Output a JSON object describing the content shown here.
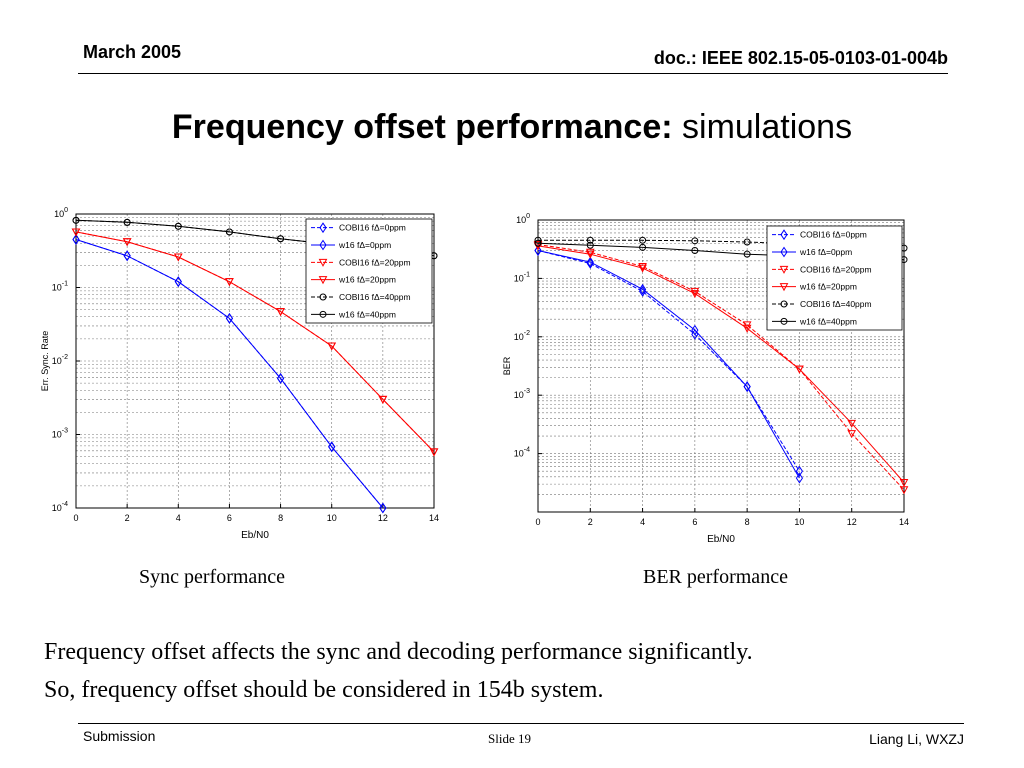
{
  "header": {
    "date": "March 2005",
    "doc": "doc.: IEEE 802.15-05-0103-01-004b"
  },
  "title": {
    "bold": "Frequency offset performance:",
    "normal": " simulations"
  },
  "captions": {
    "left": "Sync performance",
    "right": "BER performance"
  },
  "body": {
    "line1": "Frequency offset affects the sync and decoding performance significantly.",
    "line2": "So, frequency offset should be considered in 154b system."
  },
  "footer": {
    "left": "Submission",
    "center": "Slide 19",
    "right": "Liang Li, WXZJ"
  },
  "chart_data": [
    {
      "type": "line",
      "log_y": true,
      "xlabel": "Eb/N0",
      "ylabel": "Err. Sync. Rate",
      "xlim": [
        0,
        14
      ],
      "ylim": [
        0.0001,
        1
      ],
      "xticks": [
        0,
        2,
        4,
        6,
        8,
        10,
        12,
        14
      ],
      "yticks": [
        1,
        0.1,
        0.01,
        0.001,
        0.0001
      ],
      "ytick_labels": [
        "10^0",
        "10^-1",
        "10^-2",
        "10^-3",
        "10^-4"
      ],
      "grid": true,
      "legend_position": "top-right",
      "series": [
        {
          "name": "COBI16 fΔ=0ppm",
          "color": "#0000ff",
          "dash": true,
          "marker": "diamond",
          "x": [
            0,
            2,
            4,
            6,
            8,
            10,
            12
          ],
          "y": [
            0.45,
            0.27,
            0.12,
            0.038,
            0.0058,
            0.00068,
            0.0001
          ]
        },
        {
          "name": "w16 fΔ=0ppm",
          "color": "#0000ff",
          "dash": false,
          "marker": "diamond",
          "x": [
            0,
            2,
            4,
            6,
            8,
            10,
            12
          ],
          "y": [
            0.45,
            0.27,
            0.12,
            0.038,
            0.0058,
            0.00068,
            0.0001
          ]
        },
        {
          "name": "COBI16 fΔ=20ppm",
          "color": "#ff0000",
          "dash": true,
          "marker": "triangle",
          "x": [
            0,
            2,
            4,
            6,
            8,
            10,
            12,
            14
          ],
          "y": [
            0.57,
            0.42,
            0.26,
            0.12,
            0.047,
            0.016,
            0.003,
            0.00058
          ]
        },
        {
          "name": "w16 fΔ=20ppm",
          "color": "#ff0000",
          "dash": false,
          "marker": "triangle",
          "x": [
            0,
            2,
            4,
            6,
            8,
            10,
            12,
            14
          ],
          "y": [
            0.57,
            0.42,
            0.26,
            0.12,
            0.047,
            0.016,
            0.003,
            0.00058
          ]
        },
        {
          "name": "COBI16 fΔ=40ppm",
          "color": "#000000",
          "dash": true,
          "marker": "circle",
          "x": [
            0,
            2,
            4,
            6,
            8,
            14
          ],
          "y": [
            0.82,
            0.77,
            0.68,
            0.57,
            0.46,
            0.27
          ]
        },
        {
          "name": "w16 fΔ=40ppm",
          "color": "#000000",
          "dash": false,
          "marker": "circle",
          "x": [
            0,
            2,
            4,
            6,
            8,
            14
          ],
          "y": [
            0.82,
            0.77,
            0.68,
            0.57,
            0.46,
            0.27
          ]
        }
      ]
    },
    {
      "type": "line",
      "log_y": true,
      "xlabel": "Eb/N0",
      "ylabel": "BER",
      "xlim": [
        0,
        14
      ],
      "ylim": [
        1e-05,
        1
      ],
      "xticks": [
        0,
        2,
        4,
        6,
        8,
        10,
        12,
        14
      ],
      "yticks": [
        1,
        0.1,
        0.01,
        0.001,
        0.0001
      ],
      "ytick_labels": [
        "10^0",
        "10^-1",
        "10^-2",
        "10^-3",
        "10^-4"
      ],
      "grid": true,
      "legend_position": "top-right",
      "series": [
        {
          "name": "COBI16 fΔ=0ppm",
          "color": "#0000ff",
          "dash": true,
          "marker": "diamond",
          "x": [
            0,
            2,
            4,
            6,
            8,
            10
          ],
          "y": [
            0.3,
            0.18,
            0.06,
            0.011,
            0.0014,
            5e-05
          ]
        },
        {
          "name": "w16 fΔ=0ppm",
          "color": "#0000ff",
          "dash": false,
          "marker": "diamond",
          "x": [
            0,
            2,
            4,
            6,
            8,
            10
          ],
          "y": [
            0.3,
            0.19,
            0.065,
            0.013,
            0.0014,
            3.8e-05
          ]
        },
        {
          "name": "COBI16 fΔ=20ppm",
          "color": "#ff0000",
          "dash": true,
          "marker": "triangle",
          "x": [
            0,
            2,
            4,
            6,
            8,
            10,
            12,
            14
          ],
          "y": [
            0.38,
            0.28,
            0.16,
            0.06,
            0.016,
            0.0028,
            0.00022,
            2.4e-05
          ]
        },
        {
          "name": "w16 fΔ=20ppm",
          "color": "#ff0000",
          "dash": false,
          "marker": "triangle",
          "x": [
            0,
            2,
            4,
            6,
            8,
            10,
            12,
            14
          ],
          "y": [
            0.36,
            0.26,
            0.15,
            0.055,
            0.014,
            0.0028,
            0.00033,
            3.2e-05
          ]
        },
        {
          "name": "COBI16 fΔ=40ppm",
          "color": "#000000",
          "dash": true,
          "marker": "circle",
          "x": [
            0,
            2,
            4,
            6,
            8,
            14
          ],
          "y": [
            0.45,
            0.45,
            0.45,
            0.44,
            0.42,
            0.33
          ]
        },
        {
          "name": "w16 fΔ=40ppm",
          "color": "#000000",
          "dash": false,
          "marker": "circle",
          "x": [
            0,
            2,
            4,
            6,
            8,
            14
          ],
          "y": [
            0.4,
            0.37,
            0.34,
            0.3,
            0.26,
            0.21
          ]
        }
      ]
    }
  ]
}
